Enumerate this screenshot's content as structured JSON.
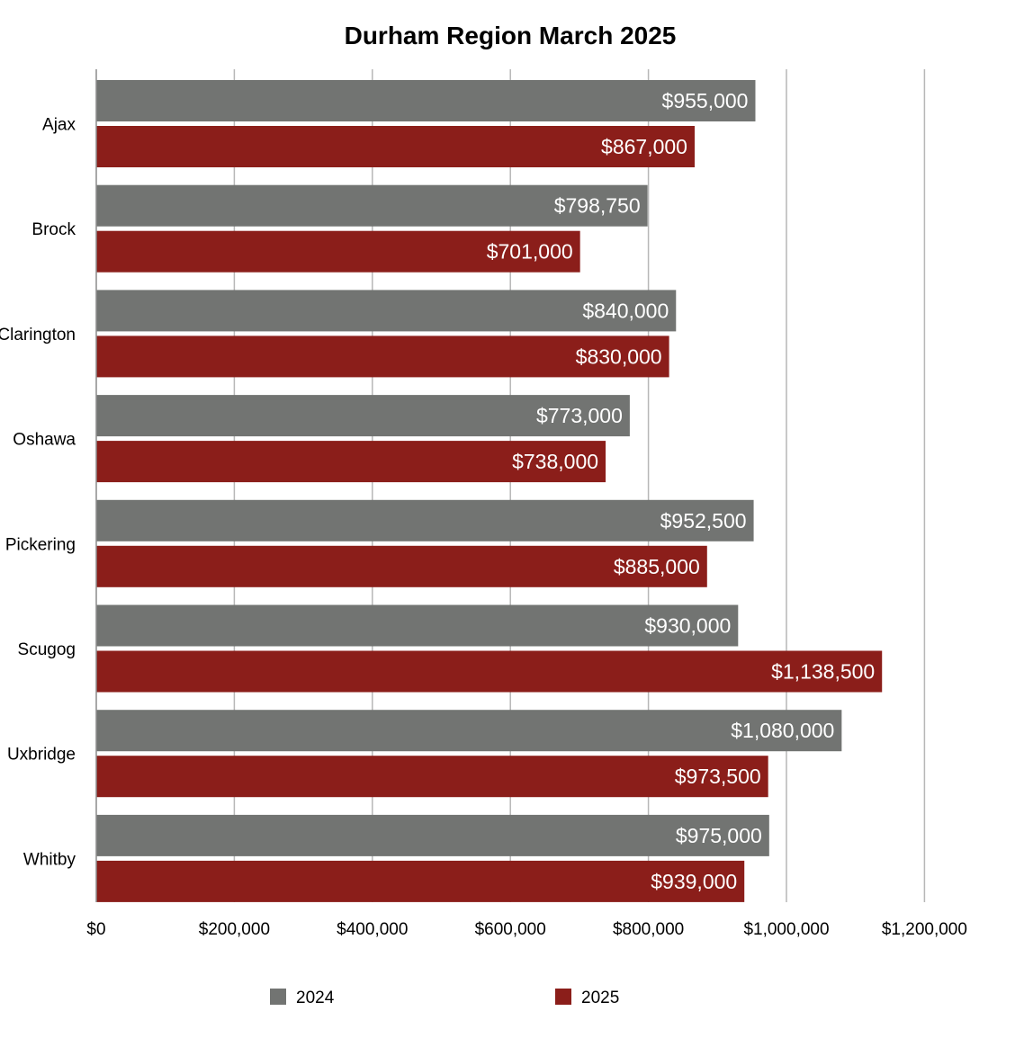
{
  "chart_data": {
    "type": "bar",
    "orientation": "horizontal",
    "title": "Durham Region March 2025",
    "xlabel": "",
    "ylabel": "",
    "categories": [
      "Ajax",
      "Brock",
      "Clarington",
      "Oshawa",
      "Pickering",
      "Scugog",
      "Uxbridge",
      "Whitby"
    ],
    "series": [
      {
        "name": "2024",
        "color": "#727472",
        "values": [
          955000,
          798750,
          840000,
          773000,
          952500,
          930000,
          1080000,
          975000
        ],
        "labels": [
          "$955,000",
          "$798,750",
          "$840,000",
          "$773,000",
          "$952,500",
          "$930,000",
          "$1,080,000",
          "$975,000"
        ]
      },
      {
        "name": "2025",
        "color": "#8b1e1a",
        "values": [
          867000,
          701000,
          830000,
          738000,
          885000,
          1138500,
          973500,
          939000
        ],
        "labels": [
          "$867,000",
          "$701,000",
          "$830,000",
          "$738,000",
          "$885,000",
          "$1,138,500",
          "$973,500",
          "$939,000"
        ]
      }
    ],
    "xlim": [
      0,
      1200000
    ],
    "ticks": [
      0,
      200000,
      400000,
      600000,
      800000,
      1000000,
      1200000
    ],
    "tick_labels": [
      "$0",
      "$200,000",
      "$400,000",
      "$600,000",
      "$800,000",
      "$1,000,000",
      "$1,200,000"
    ],
    "grid": true,
    "grid_color": "#b7b7b7",
    "legend_placement": "bottom"
  }
}
